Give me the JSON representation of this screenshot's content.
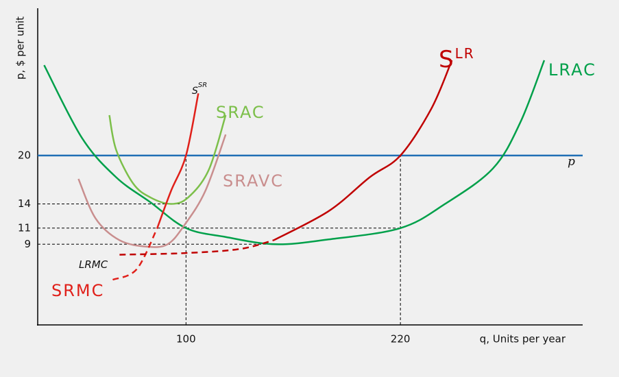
{
  "chart_data": {
    "type": "line",
    "y_label": "p, $ per unit",
    "x_label": "q, Units per year",
    "xlim": [
      17,
      322
    ],
    "ylim": [
      -1,
      38
    ],
    "xticks": [
      100,
      220
    ],
    "yticks": [
      20,
      14,
      11,
      9
    ],
    "series": [
      {
        "name": "p",
        "color": "#1f6fb5",
        "x": [
          17,
          322
        ],
        "values": [
          20,
          20
        ]
      },
      {
        "name": "LRAC",
        "color": "#00a04a",
        "x": [
          20.6,
          41.7,
          60.9,
          80.1,
          100,
          122.2,
          150,
          179.8,
          220,
          245,
          271.8,
          287.1,
          300.5
        ],
        "values": [
          31.2,
          22.2,
          17.3,
          14.2,
          11,
          9.9,
          9,
          9.6,
          11,
          14,
          18.4,
          24.1,
          31.8
        ]
      },
      {
        "name": "SRAC",
        "color": "#7cbf4a",
        "x": [
          57.1,
          60.9,
          70.5,
          80.1,
          91.6,
          101.2,
          112.7,
          122.2
        ],
        "values": [
          25,
          20.7,
          16.5,
          14.8,
          14,
          14.8,
          18.2,
          25
        ]
      },
      {
        "name": "SRAVC",
        "color": "#c98e8e",
        "x": [
          39.8,
          49.4,
          62.8,
          78.2,
          89.7,
          99.2,
          110.8,
          122.2
        ],
        "values": [
          17.1,
          12.2,
          9.5,
          8.7,
          9,
          11.4,
          15.6,
          22.6
        ]
      },
      {
        "name": "SRMC",
        "label": "S",
        "label_sup": "SR",
        "color": "#e0201a",
        "dash_until": 2,
        "x": [
          59,
          72.4,
          83.9,
          91.6,
          100,
          106.9
        ],
        "values": [
          4.6,
          5.9,
          11,
          15.6,
          20,
          27.7
        ]
      },
      {
        "name": "LRMC",
        "color": "#c00000",
        "dashed": true,
        "x": [
          62.8,
          99.2,
          129.9,
          149.1
        ],
        "values": [
          7.7,
          7.9,
          8.4,
          9.5
        ]
      },
      {
        "name": "S",
        "name_sup": "LR",
        "color": "#c00000",
        "x": [
          149.1,
          179.8,
          202.8,
          220,
          237.3,
          248.8
        ],
        "values": [
          9.5,
          13.1,
          17.3,
          20,
          25.8,
          31.8
        ]
      }
    ]
  }
}
